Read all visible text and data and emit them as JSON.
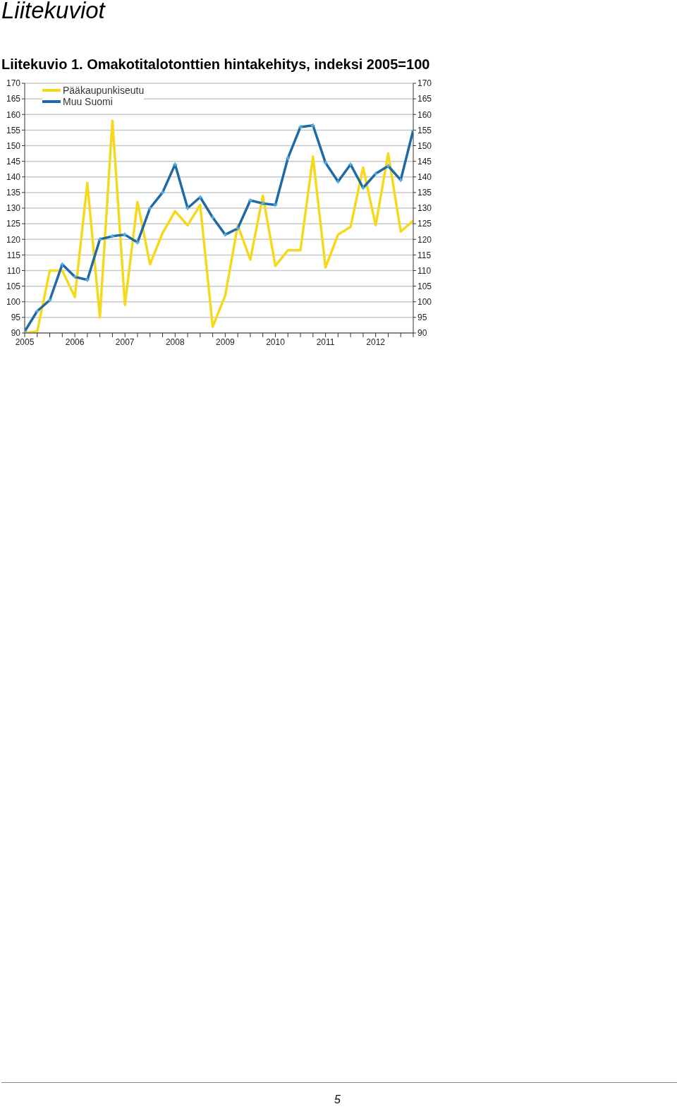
{
  "chart_data": {
    "type": "line",
    "title": "Liitekuvio 1. Omakotitalotonttien hintakehitys, indeksi 2005=100",
    "annotations": [
      "Liitekuviot",
      "5"
    ],
    "x": [
      2005,
      2005.25,
      2005.5,
      2005.75,
      2006,
      2006.25,
      2006.5,
      2006.75,
      2007,
      2007.25,
      2007.5,
      2007.75,
      2008,
      2008.25,
      2008.5,
      2008.75,
      2009,
      2009.25,
      2009.5,
      2009.75,
      2010,
      2010.25,
      2010.5,
      2010.75,
      2011,
      2011.25,
      2011.5,
      2011.75,
      2012,
      2012.25,
      2012.5,
      2012.75
    ],
    "series": [
      {
        "name": "Pääkaupunkiseutu",
        "color": "#f5d91c",
        "marker": "none",
        "values": [
          90,
          90.5,
          110,
          110,
          101.5,
          138,
          95,
          158,
          99,
          132,
          112,
          122,
          129,
          124.5,
          131,
          92,
          102,
          124.5,
          113.5,
          134,
          111.5,
          116.5,
          116.5,
          146.5,
          111,
          121.5,
          124,
          143,
          124.5,
          147.5,
          122.5,
          126
        ]
      },
      {
        "name": "Muu Suomi",
        "color": "#1f6aa5",
        "marker": "cross",
        "values": [
          90.5,
          97,
          100.5,
          112,
          108,
          107,
          120,
          121,
          121.5,
          119,
          130,
          135,
          144,
          130,
          133.5,
          127,
          121.5,
          123.5,
          132.5,
          131.5,
          131,
          146,
          156,
          156.5,
          144.5,
          138.5,
          144,
          136.5,
          141,
          143.5,
          139,
          155
        ]
      }
    ],
    "xlim": [
      2005,
      2012.75
    ],
    "xticks": [
      {
        "value": 2005,
        "label": "2005"
      },
      {
        "value": 2005.25,
        "label": null
      },
      {
        "value": 2005.5,
        "label": null
      },
      {
        "value": 2005.75,
        "label": null
      },
      {
        "value": 2006,
        "label": "2006"
      },
      {
        "value": 2006.25,
        "label": null
      },
      {
        "value": 2006.5,
        "label": null
      },
      {
        "value": 2006.75,
        "label": null
      },
      {
        "value": 2007,
        "label": "2007"
      },
      {
        "value": 2007.25,
        "label": null
      },
      {
        "value": 2007.5,
        "label": null
      },
      {
        "value": 2007.75,
        "label": null
      },
      {
        "value": 2008,
        "label": "2008"
      },
      {
        "value": 2008.25,
        "label": null
      },
      {
        "value": 2008.5,
        "label": null
      },
      {
        "value": 2008.75,
        "label": null
      },
      {
        "value": 2009,
        "label": "2009"
      },
      {
        "value": 2009.25,
        "label": null
      },
      {
        "value": 2009.5,
        "label": null
      },
      {
        "value": 2009.75,
        "label": null
      },
      {
        "value": 2010,
        "label": "2010"
      },
      {
        "value": 2010.25,
        "label": null
      },
      {
        "value": 2010.5,
        "label": null
      },
      {
        "value": 2010.75,
        "label": null
      },
      {
        "value": 2011,
        "label": "2011"
      },
      {
        "value": 2011.25,
        "label": null
      },
      {
        "value": 2011.5,
        "label": null
      },
      {
        "value": 2011.75,
        "label": null
      },
      {
        "value": 2012,
        "label": "2012"
      },
      {
        "value": 2012.25,
        "label": null
      },
      {
        "value": 2012.5,
        "label": null
      },
      {
        "value": 2012.75,
        "label": null
      }
    ],
    "ylim": [
      90,
      170
    ],
    "yticks": [
      90,
      95,
      100,
      105,
      110,
      115,
      120,
      125,
      130,
      135,
      140,
      145,
      150,
      155,
      160,
      165,
      170
    ],
    "y2lim": [
      90,
      170
    ],
    "y2ticks": [
      90,
      95,
      100,
      105,
      110,
      115,
      120,
      125,
      130,
      135,
      140,
      145,
      150,
      155,
      160,
      165,
      170
    ],
    "grid": "y",
    "legend": "top left"
  }
}
